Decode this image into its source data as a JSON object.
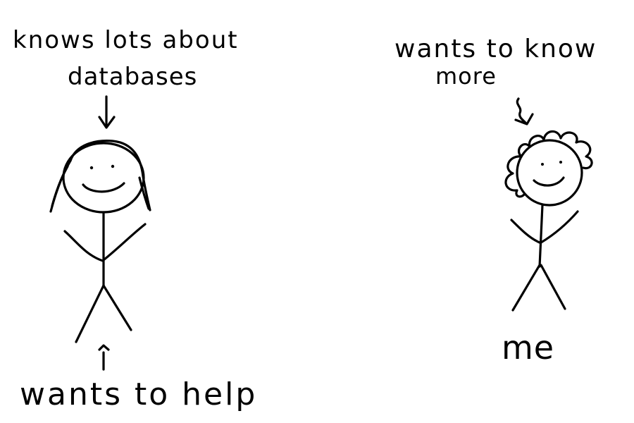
{
  "labels": {
    "expert_knowledge_line1": "knows lots about",
    "expert_knowledge_line2": "databases",
    "expert_attitude": "wants to help",
    "me_wish_line1": "wants to know",
    "me_wish_line2": "more",
    "me_name": "me"
  },
  "colors": {
    "ink": "#000000",
    "paper": "#ffffff"
  }
}
